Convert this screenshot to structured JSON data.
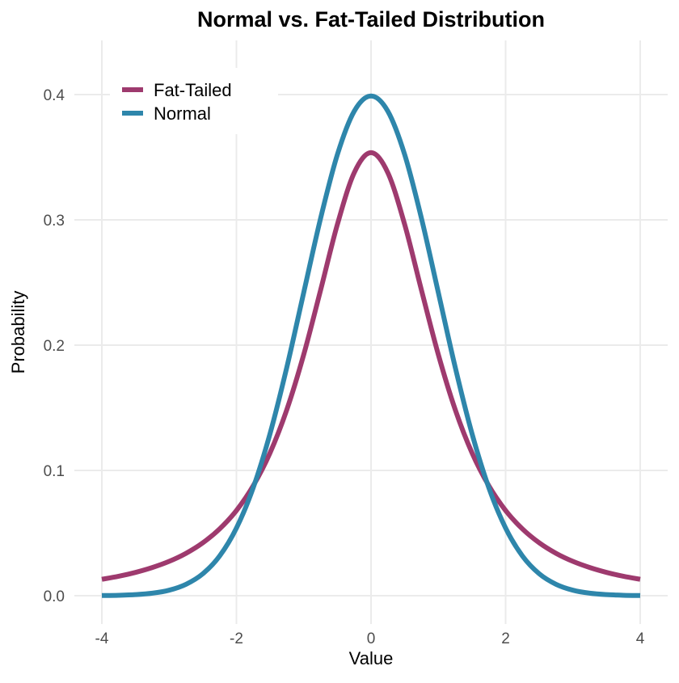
{
  "chart_data": {
    "type": "line",
    "title": "Normal vs. Fat-Tailed Distribution",
    "xlabel": "Value",
    "ylabel": "Probability",
    "xlim": [
      -4,
      4
    ],
    "ylim": [
      0,
      0.4
    ],
    "xticks": [
      -4,
      -2,
      0,
      2,
      4
    ],
    "yticks": [
      0.0,
      0.1,
      0.2,
      0.3,
      0.4
    ],
    "ytick_labels": [
      "0.0",
      "0.1",
      "0.2",
      "0.3",
      "0.4"
    ],
    "grid": true,
    "legend_position": "top-left",
    "x": [
      -4,
      -3.75,
      -3.5,
      -3.25,
      -3,
      -2.75,
      -2.5,
      -2.25,
      -2,
      -1.75,
      -1.5,
      -1.25,
      -1,
      -0.75,
      -0.5,
      -0.25,
      0,
      0.25,
      0.5,
      0.75,
      1,
      1.25,
      1.5,
      1.75,
      2,
      2.25,
      2.5,
      2.75,
      3,
      3.25,
      3.5,
      3.75,
      4
    ],
    "series": [
      {
        "name": "Fat-Tailed",
        "color": "#9E3A6E",
        "values": [
          0.0131,
          0.0155,
          0.0186,
          0.0225,
          0.0274,
          0.0338,
          0.0422,
          0.0533,
          0.068,
          0.0878,
          0.1141,
          0.1487,
          0.1925,
          0.2438,
          0.2963,
          0.3376,
          0.3536,
          0.3376,
          0.2963,
          0.2438,
          0.1925,
          0.1487,
          0.1141,
          0.0878,
          0.068,
          0.0533,
          0.0422,
          0.0338,
          0.0274,
          0.0225,
          0.0186,
          0.0155,
          0.0131
        ]
      },
      {
        "name": "Normal",
        "color": "#2E86AB",
        "values": [
          0.00013,
          0.00035,
          0.00087,
          0.002,
          0.0044,
          0.0091,
          0.0175,
          0.0317,
          0.054,
          0.0863,
          0.1295,
          0.1826,
          0.242,
          0.3011,
          0.3521,
          0.3867,
          0.3989,
          0.3867,
          0.3521,
          0.3011,
          0.242,
          0.1826,
          0.1295,
          0.0863,
          0.054,
          0.0317,
          0.0175,
          0.0091,
          0.0044,
          0.002,
          0.00087,
          0.00035,
          0.00013
        ]
      }
    ]
  }
}
